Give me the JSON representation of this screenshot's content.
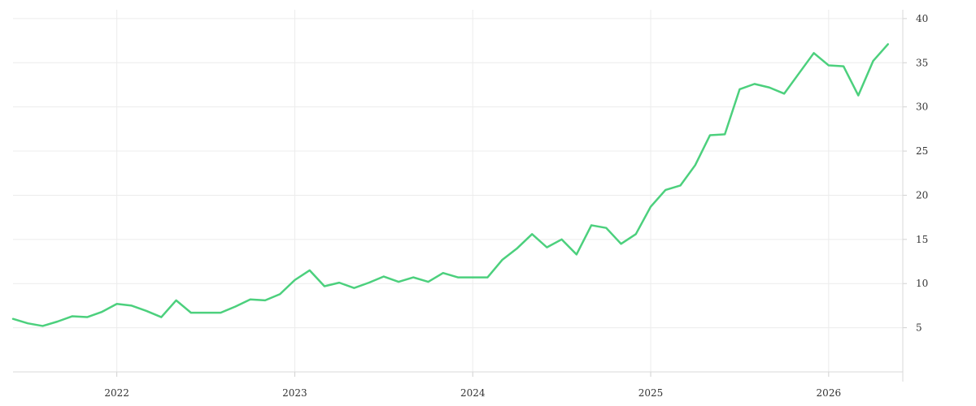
{
  "chart_data": {
    "type": "line",
    "title": "",
    "xlabel": "",
    "ylabel": "",
    "x_tick_labels": [
      "2022",
      "2023",
      "2024",
      "2025",
      "2026"
    ],
    "y_tick_labels": [
      "5",
      "10",
      "15",
      "20",
      "25",
      "30",
      "35",
      "40"
    ],
    "xlim": [
      "2021-06",
      "2026-06"
    ],
    "ylim": [
      0,
      41
    ],
    "y_axis_position": "right",
    "grid": true,
    "legend": "none",
    "colors": {
      "series": "#4cd07d",
      "grid": "#ececec",
      "text": "#333333"
    },
    "series": [
      {
        "x": [
          "2021-06",
          "2021-07",
          "2021-08",
          "2021-09",
          "2021-10",
          "2021-11",
          "2021-12",
          "2022-01",
          "2022-02",
          "2022-03",
          "2022-04",
          "2022-05",
          "2022-06",
          "2022-07",
          "2022-08",
          "2022-09",
          "2022-10",
          "2022-11",
          "2022-12",
          "2023-01",
          "2023-02",
          "2023-03",
          "2023-04",
          "2023-05",
          "2023-06",
          "2023-07",
          "2023-08",
          "2023-09",
          "2023-10",
          "2023-11",
          "2023-12",
          "2024-01",
          "2024-02",
          "2024-03",
          "2024-04",
          "2024-05",
          "2024-06",
          "2024-07",
          "2024-08",
          "2024-09",
          "2024-10",
          "2024-11",
          "2024-12",
          "2025-01",
          "2025-02",
          "2025-03",
          "2025-04",
          "2025-05",
          "2025-06",
          "2025-07",
          "2025-08",
          "2025-09",
          "2025-10",
          "2025-11",
          "2025-12",
          "2026-01",
          "2026-02",
          "2026-03",
          "2026-04",
          "2026-05"
        ],
        "values": [
          6.0,
          5.5,
          5.2,
          5.7,
          6.3,
          6.2,
          6.8,
          7.7,
          7.5,
          6.9,
          6.2,
          8.1,
          6.7,
          6.7,
          6.7,
          7.4,
          8.2,
          8.1,
          8.8,
          10.4,
          11.5,
          9.7,
          10.1,
          9.5,
          10.1,
          10.8,
          10.2,
          10.7,
          10.2,
          11.2,
          10.7,
          10.7,
          10.7,
          12.7,
          14.0,
          15.6,
          14.1,
          15.0,
          13.3,
          16.6,
          16.3,
          14.5,
          15.6,
          18.7,
          20.6,
          21.1,
          23.4,
          26.8,
          26.9,
          32.0,
          32.6,
          32.2,
          31.5,
          33.8,
          36.1,
          34.7,
          34.6,
          31.3,
          35.2,
          37.1
        ]
      }
    ]
  }
}
